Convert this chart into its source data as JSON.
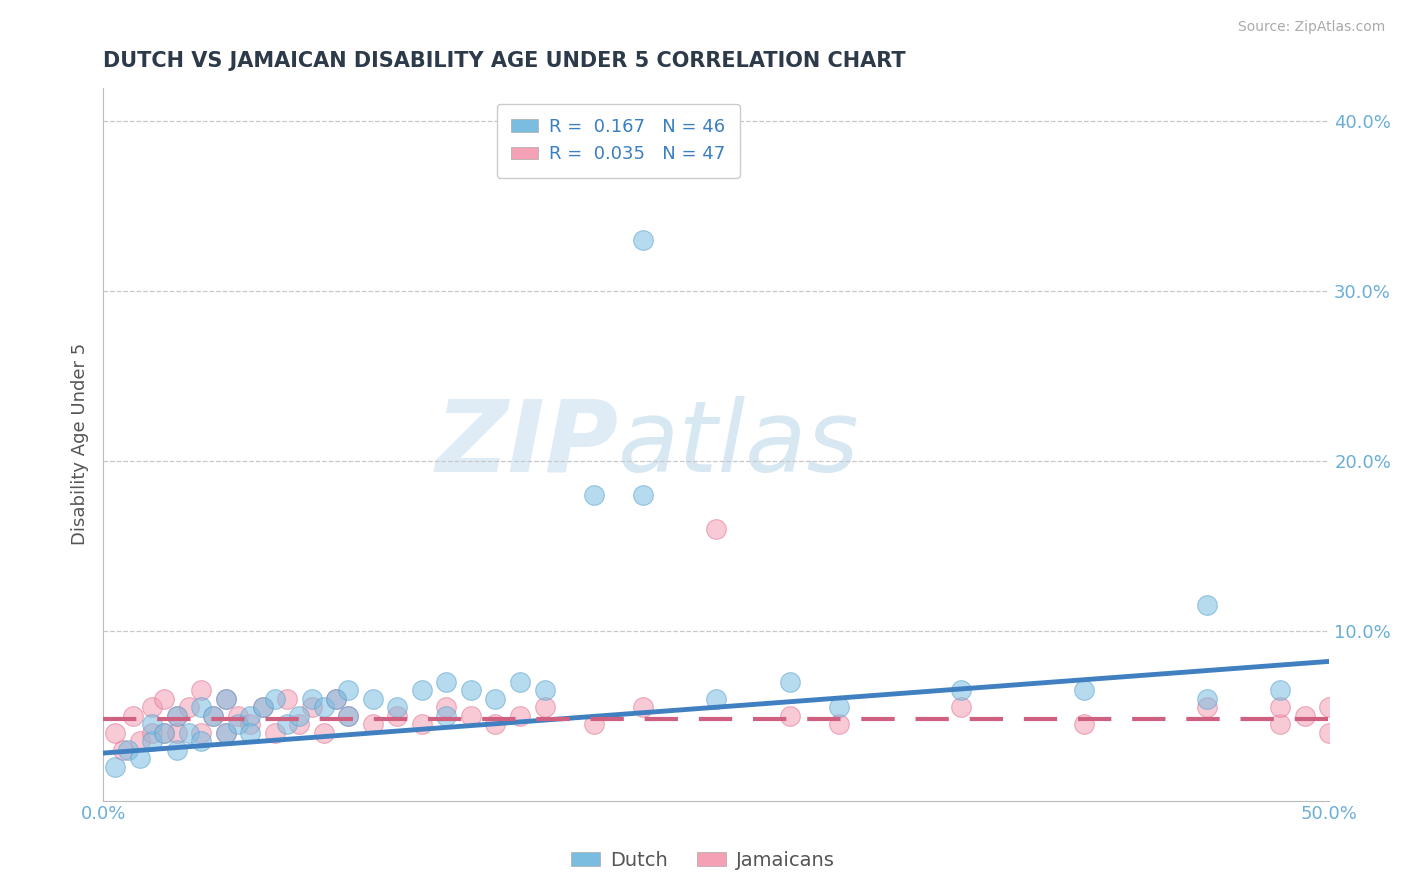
{
  "title": "DUTCH VS JAMAICAN DISABILITY AGE UNDER 5 CORRELATION CHART",
  "source": "Source: ZipAtlas.com",
  "ylabel": "Disability Age Under 5",
  "xlim": [
    0.0,
    0.5
  ],
  "ylim": [
    0.0,
    0.42
  ],
  "xticks": [
    0.0,
    0.5
  ],
  "xtick_labels": [
    "0.0%",
    "50.0%"
  ],
  "ytick_positions": [
    0.1,
    0.2,
    0.3,
    0.4
  ],
  "ytick_labels": [
    "10.0%",
    "20.0%",
    "30.0%",
    "40.0%"
  ],
  "dutch_color": "#7bbde0",
  "dutch_edge_color": "#5aa0cc",
  "jamaican_color": "#f4a0b5",
  "jamaican_edge_color": "#e07090",
  "dutch_R": 0.167,
  "dutch_N": 46,
  "jamaican_R": 0.035,
  "jamaican_N": 47,
  "dutch_line_color": "#4080c0",
  "jamaican_line_color": "#d06080",
  "background_color": "#ffffff",
  "grid_color": "#c8c8c8",
  "title_color": "#2d3a4a",
  "axis_label_color": "#555555",
  "tick_label_color": "#6baed6",
  "watermark": "ZIPatlas",
  "dutch_points_x": [
    0.005,
    0.01,
    0.015,
    0.02,
    0.02,
    0.025,
    0.03,
    0.03,
    0.035,
    0.04,
    0.04,
    0.045,
    0.05,
    0.05,
    0.055,
    0.06,
    0.06,
    0.065,
    0.07,
    0.075,
    0.08,
    0.085,
    0.09,
    0.095,
    0.1,
    0.1,
    0.11,
    0.12,
    0.13,
    0.14,
    0.14,
    0.15,
    0.16,
    0.17,
    0.18,
    0.2,
    0.22,
    0.22,
    0.25,
    0.28,
    0.3,
    0.35,
    0.4,
    0.45,
    0.45,
    0.48
  ],
  "dutch_points_y": [
    0.02,
    0.03,
    0.025,
    0.035,
    0.045,
    0.04,
    0.03,
    0.05,
    0.04,
    0.055,
    0.035,
    0.05,
    0.04,
    0.06,
    0.045,
    0.05,
    0.04,
    0.055,
    0.06,
    0.045,
    0.05,
    0.06,
    0.055,
    0.06,
    0.05,
    0.065,
    0.06,
    0.055,
    0.065,
    0.07,
    0.05,
    0.065,
    0.06,
    0.07,
    0.065,
    0.18,
    0.33,
    0.18,
    0.06,
    0.07,
    0.055,
    0.065,
    0.065,
    0.115,
    0.06,
    0.065
  ],
  "jamaican_points_x": [
    0.005,
    0.008,
    0.012,
    0.015,
    0.02,
    0.02,
    0.025,
    0.025,
    0.03,
    0.03,
    0.035,
    0.04,
    0.04,
    0.045,
    0.05,
    0.05,
    0.055,
    0.06,
    0.065,
    0.07,
    0.075,
    0.08,
    0.085,
    0.09,
    0.095,
    0.1,
    0.11,
    0.12,
    0.13,
    0.14,
    0.15,
    0.16,
    0.17,
    0.18,
    0.2,
    0.22,
    0.25,
    0.28,
    0.3,
    0.35,
    0.4,
    0.45,
    0.48,
    0.48,
    0.49,
    0.5,
    0.5
  ],
  "jamaican_points_y": [
    0.04,
    0.03,
    0.05,
    0.035,
    0.04,
    0.055,
    0.04,
    0.06,
    0.05,
    0.04,
    0.055,
    0.04,
    0.065,
    0.05,
    0.04,
    0.06,
    0.05,
    0.045,
    0.055,
    0.04,
    0.06,
    0.045,
    0.055,
    0.04,
    0.06,
    0.05,
    0.045,
    0.05,
    0.045,
    0.055,
    0.05,
    0.045,
    0.05,
    0.055,
    0.045,
    0.055,
    0.16,
    0.05,
    0.045,
    0.055,
    0.045,
    0.055,
    0.045,
    0.055,
    0.05,
    0.04,
    0.055
  ],
  "dutch_trend_start_y": 0.028,
  "dutch_trend_end_y": 0.082,
  "jamaican_trend_y": 0.048
}
